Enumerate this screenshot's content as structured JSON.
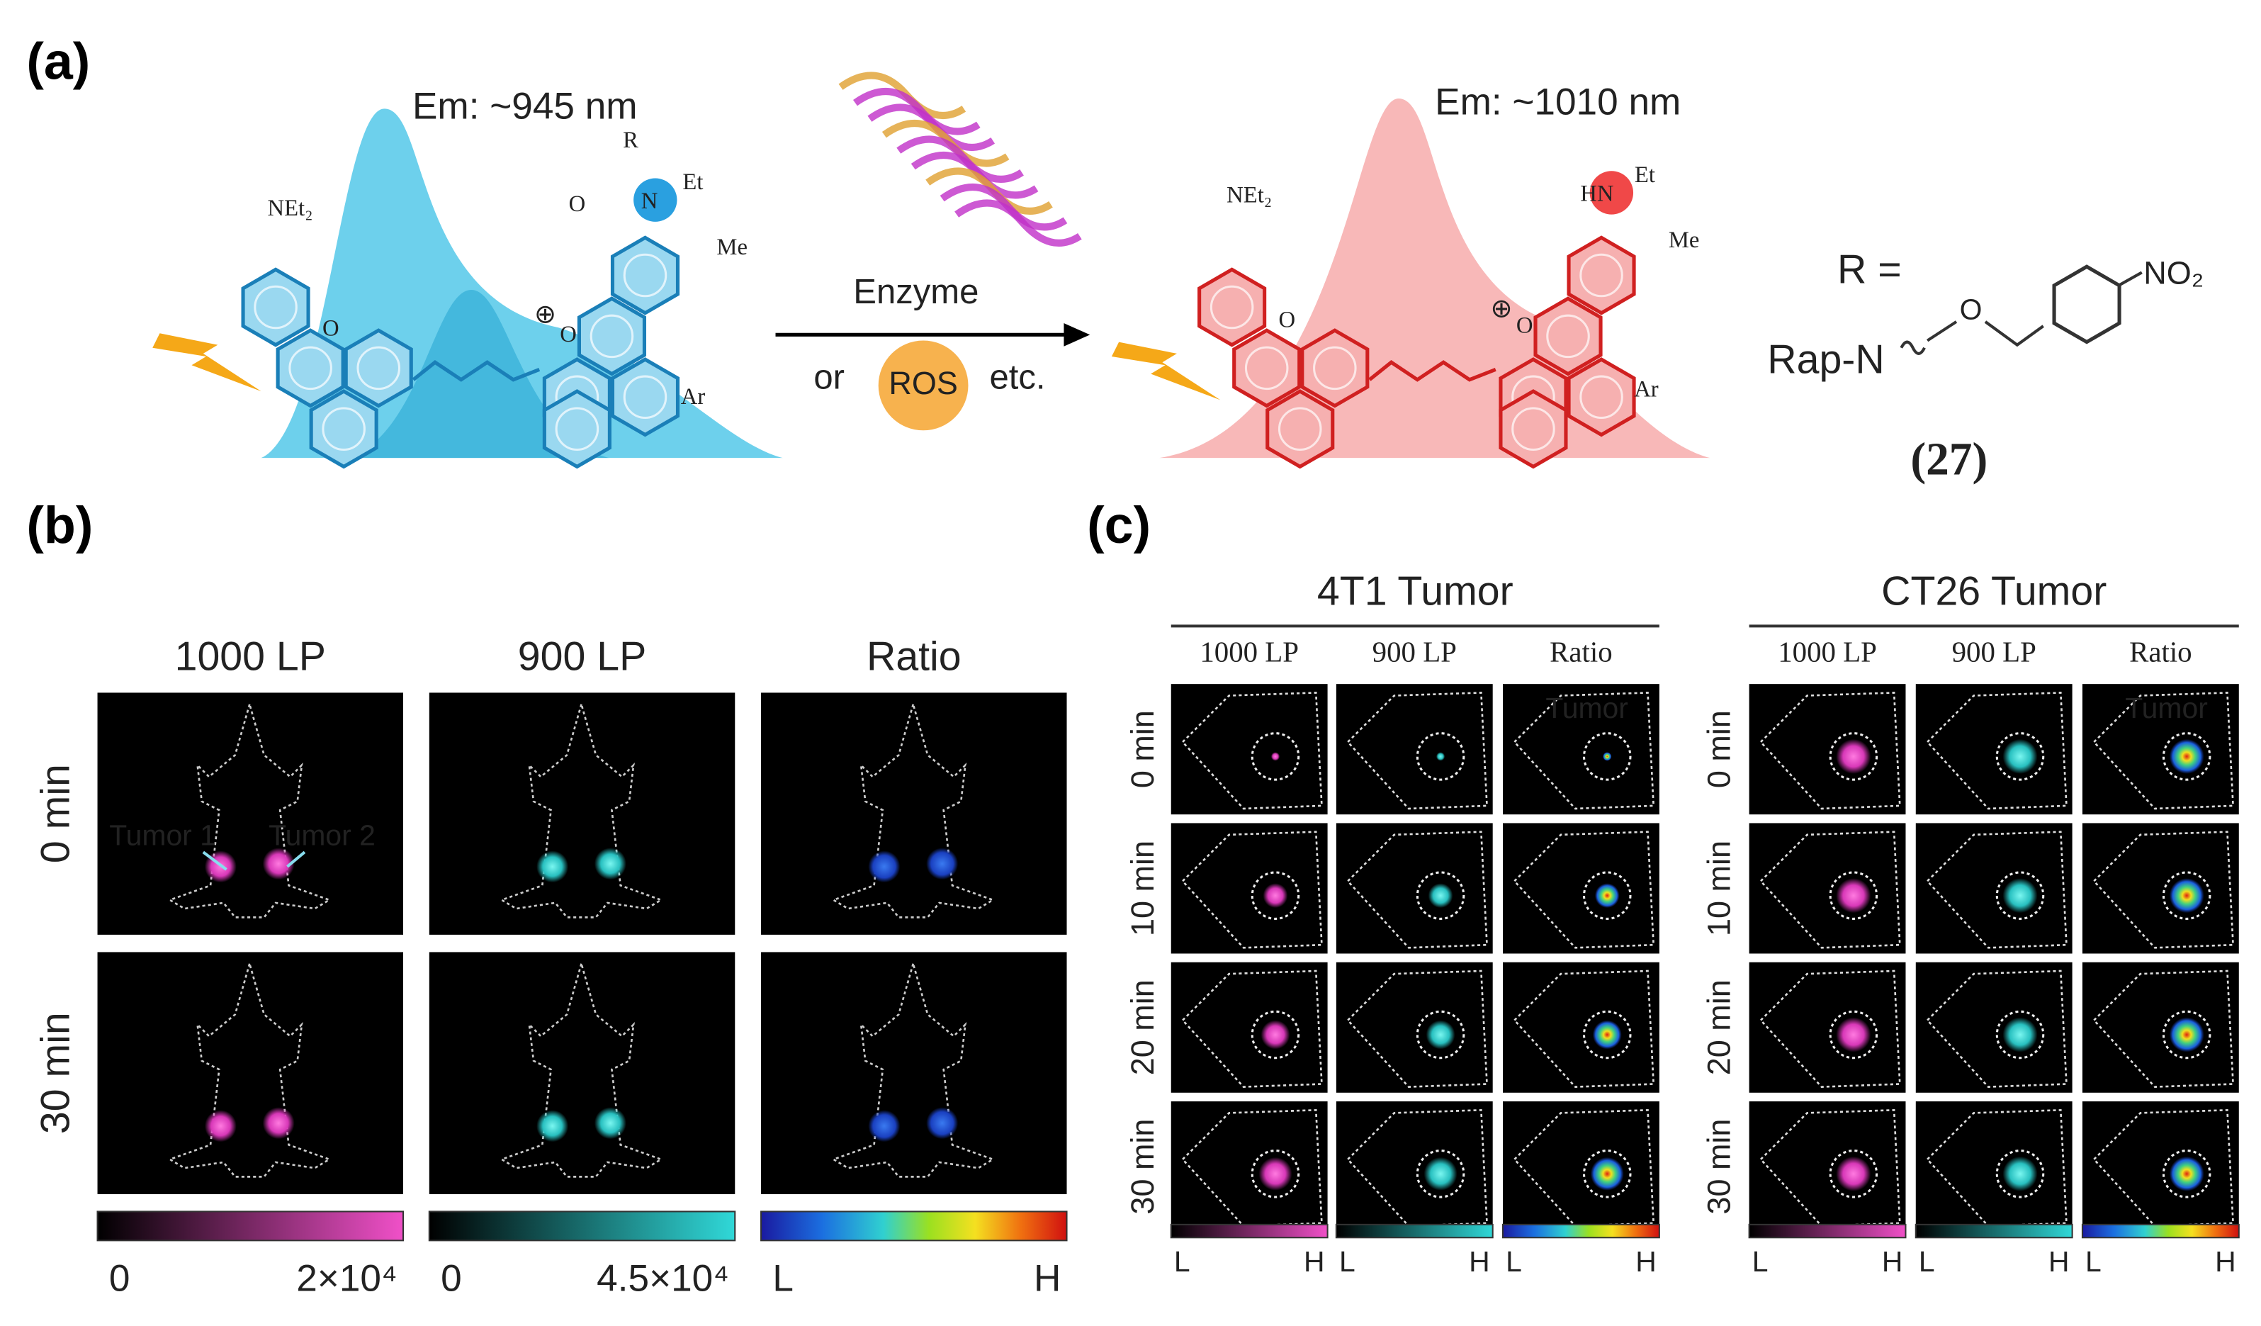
{
  "panel_a": {
    "label": "(a)",
    "emission_before": "Em: ~945 nm",
    "emission_after": "Em: ~1010 nm",
    "atoms_before": [
      "NEt₂",
      "R",
      "O",
      "N",
      "Et",
      "Me",
      "O",
      "Ar",
      "O"
    ],
    "atoms_after": [
      "NEt₂",
      "HN",
      "Et",
      "Me",
      "O",
      "Ar",
      "O"
    ],
    "enzyme": "Enzyme",
    "or": "or",
    "ros": "ROS",
    "etc": "etc.",
    "r_equals": "R =",
    "rap_n": "Rap-N",
    "nitro": "NO₂",
    "ether_o": "O",
    "compound": "(27)"
  },
  "panel_b": {
    "label": "(b)",
    "columns": [
      "1000 LP",
      "900 LP",
      "Ratio"
    ],
    "rows": [
      "0 min",
      "30 min"
    ],
    "annotations": [
      "Tumor 1",
      "Tumor 2"
    ],
    "colorbars": [
      {
        "low": "0",
        "high": "2×10⁴"
      },
      {
        "low": "0",
        "high": "4.5×10⁴"
      },
      {
        "low": "L",
        "high": "H"
      }
    ]
  },
  "panel_c": {
    "label": "(c)",
    "rows": [
      "0 min",
      "10 min",
      "20 min",
      "30 min"
    ],
    "annotation": "Tumor",
    "groups": [
      {
        "title": "4T1 Tumor",
        "columns": [
          "1000 LP",
          "900 LP",
          "Ratio"
        ]
      },
      {
        "title": "CT26 Tumor",
        "columns": [
          "1000 LP",
          "900 LP",
          "Ratio"
        ]
      }
    ],
    "colorbar_low": "L",
    "colorbar_high": "H"
  }
}
